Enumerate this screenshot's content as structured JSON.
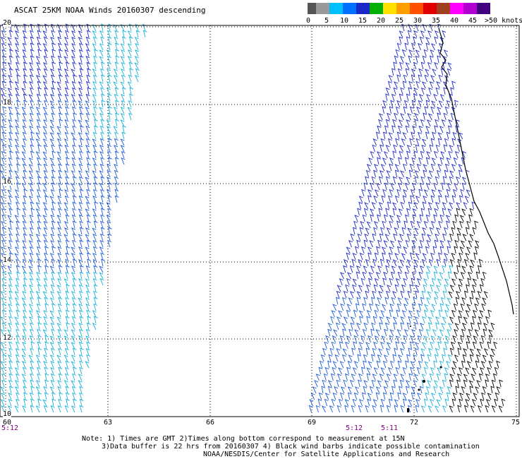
{
  "title": "ASCAT 25KM NOAA Winds 20160307 descending",
  "legend": {
    "colors": [
      "#555555",
      "#999999",
      "#00bfff",
      "#0070ff",
      "#1a28c8",
      "#00b000",
      "#ffe000",
      "#ffa000",
      "#ff5000",
      "#e00000",
      "#a04020",
      "#ff00ff",
      "#b000d0",
      "#400080"
    ],
    "labels": [
      "0",
      "5",
      "10",
      "15",
      "20",
      "25",
      "30",
      "35",
      "40",
      "45",
      ">50 knots"
    ]
  },
  "lat_labels": [
    "20",
    "18",
    "16",
    "14",
    "12",
    "10"
  ],
  "lon_labels": [
    "60",
    "63",
    "66",
    "69",
    "72",
    "75"
  ],
  "times": [
    "5:12",
    "5:12",
    "5:11"
  ],
  "notes": [
    "Note: 1) Times are GMT 2)Times along bottom correspond to measurement at 15N",
    "3)Data buffer is 22 hrs from 20160307 4) Black wind barbs indicate possible contamination",
    "NOAA/NESDIS/Center for Satellite Applications and Research"
  ]
}
